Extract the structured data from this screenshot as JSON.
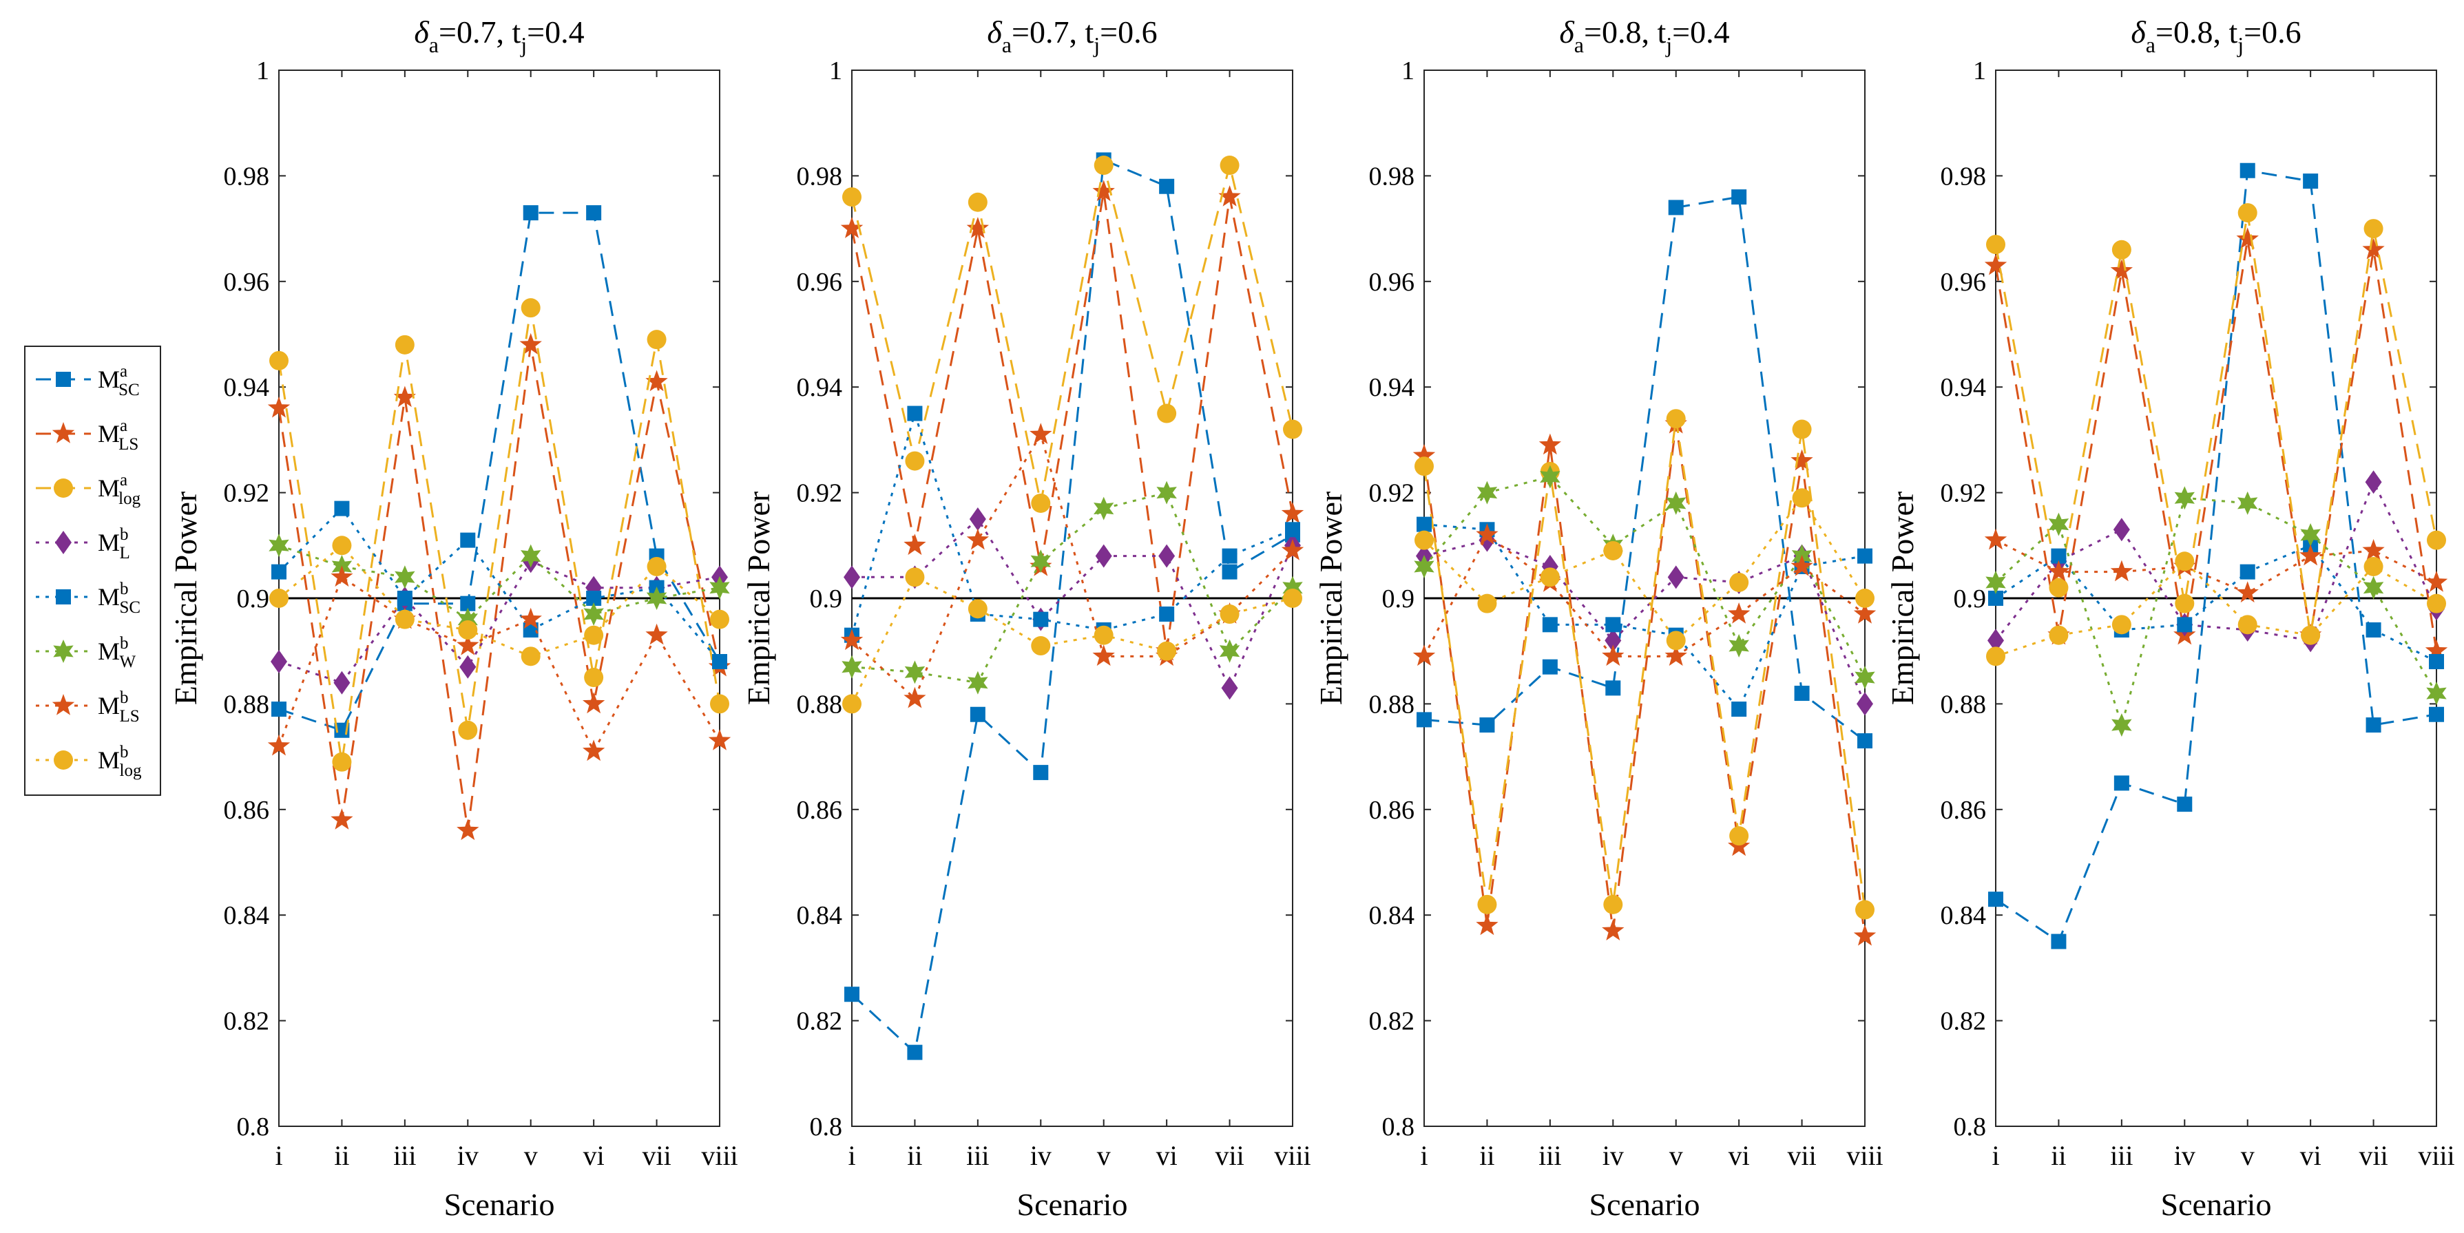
{
  "chart_data": {
    "type": "line",
    "ylabel": "Empirical Power",
    "xlabel": "Scenario",
    "ylim": [
      0.8,
      1.0
    ],
    "yticks": [
      0.8,
      0.82,
      0.84,
      0.86,
      0.88,
      0.9,
      0.92,
      0.94,
      0.96,
      0.98,
      1
    ],
    "ytick_labels": [
      "0.8",
      "0.82",
      "0.84",
      "0.86",
      "0.88",
      "0.9",
      "0.92",
      "0.94",
      "0.96",
      "0.98",
      "1"
    ],
    "categories": [
      "i",
      "ii",
      "iii",
      "iv",
      "v",
      "vi",
      "vii",
      "viii"
    ],
    "reference_line": 0.9,
    "legend": [
      {
        "base": "M",
        "sup": "a",
        "sub": "SC",
        "color": "#0072BD",
        "marker": "square",
        "dash": "dashed"
      },
      {
        "base": "M",
        "sup": "a",
        "sub": "LS",
        "color": "#D95319",
        "marker": "star",
        "dash": "dashed"
      },
      {
        "base": "M",
        "sup": "a",
        "sub": "log",
        "color": "#EDB120",
        "marker": "circle",
        "dash": "dashed"
      },
      {
        "base": "M",
        "sup": "b",
        "sub": "L",
        "color": "#7E2F8E",
        "marker": "diamond",
        "dash": "dotted"
      },
      {
        "base": "M",
        "sup": "b",
        "sub": "SC",
        "color": "#0072BD",
        "marker": "square",
        "dash": "dotted"
      },
      {
        "base": "M",
        "sup": "b",
        "sub": "W",
        "color": "#77AC30",
        "marker": "hexagram",
        "dash": "dotted"
      },
      {
        "base": "M",
        "sup": "b",
        "sub": "LS",
        "color": "#D95319",
        "marker": "star",
        "dash": "dotted"
      },
      {
        "base": "M",
        "sup": "b",
        "sub": "log",
        "color": "#EDB120",
        "marker": "circle",
        "dash": "dotted"
      }
    ],
    "panels": [
      {
        "title_delta": "δ",
        "title_delta_sub": "a",
        "title_mid": "=0.7, t",
        "title_t_sub": "j",
        "title_end": "=0.4",
        "series": [
          {
            "name": "M^a_SC",
            "values": [
              0.879,
              0.875,
              0.899,
              0.899,
              0.973,
              0.973,
              0.908,
              0.888
            ]
          },
          {
            "name": "M^a_LS",
            "values": [
              0.936,
              0.858,
              0.938,
              0.856,
              0.948,
              0.88,
              0.941,
              0.887
            ]
          },
          {
            "name": "M^a_log",
            "values": [
              0.945,
              0.869,
              0.948,
              0.875,
              0.955,
              0.885,
              0.949,
              0.88
            ]
          },
          {
            "name": "M^b_L",
            "values": [
              0.888,
              0.884,
              0.9,
              0.887,
              0.907,
              0.902,
              0.902,
              0.904
            ]
          },
          {
            "name": "M^b_SC",
            "values": [
              0.905,
              0.917,
              0.9,
              0.911,
              0.894,
              0.9,
              0.902,
              0.888
            ]
          },
          {
            "name": "M^b_W",
            "values": [
              0.91,
              0.906,
              0.904,
              0.896,
              0.908,
              0.897,
              0.9,
              0.902
            ]
          },
          {
            "name": "M^b_LS",
            "values": [
              0.872,
              0.904,
              0.896,
              0.891,
              0.896,
              0.871,
              0.893,
              0.873
            ]
          },
          {
            "name": "M^b_log",
            "values": [
              0.9,
              0.91,
              0.896,
              0.894,
              0.889,
              0.893,
              0.906,
              0.896
            ]
          }
        ]
      },
      {
        "title_delta": "δ",
        "title_delta_sub": "a",
        "title_mid": "=0.7, t",
        "title_t_sub": "j",
        "title_end": "=0.6",
        "series": [
          {
            "name": "M^a_SC",
            "values": [
              0.825,
              0.814,
              0.878,
              0.867,
              0.983,
              0.978,
              0.905,
              0.912
            ]
          },
          {
            "name": "M^a_LS",
            "values": [
              0.97,
              0.91,
              0.97,
              0.906,
              0.977,
              0.89,
              0.976,
              0.916
            ]
          },
          {
            "name": "M^a_log",
            "values": [
              0.976,
              0.926,
              0.975,
              0.918,
              0.982,
              0.935,
              0.982,
              0.932
            ]
          },
          {
            "name": "M^b_L",
            "values": [
              0.904,
              0.904,
              0.915,
              0.896,
              0.908,
              0.908,
              0.883,
              0.91
            ]
          },
          {
            "name": "M^b_SC",
            "values": [
              0.893,
              0.935,
              0.897,
              0.896,
              0.894,
              0.897,
              0.908,
              0.913
            ]
          },
          {
            "name": "M^b_W",
            "values": [
              0.887,
              0.886,
              0.884,
              0.907,
              0.917,
              0.92,
              0.89,
              0.902
            ]
          },
          {
            "name": "M^b_LS",
            "values": [
              0.892,
              0.881,
              0.911,
              0.931,
              0.889,
              0.889,
              0.897,
              0.909
            ]
          },
          {
            "name": "M^b_log",
            "values": [
              0.88,
              0.904,
              0.898,
              0.891,
              0.893,
              0.89,
              0.897,
              0.9
            ]
          }
        ]
      },
      {
        "title_delta": "δ",
        "title_delta_sub": "a",
        "title_mid": "=0.8, t",
        "title_t_sub": "j",
        "title_end": "=0.4",
        "series": [
          {
            "name": "M^a_SC",
            "values": [
              0.877,
              0.876,
              0.887,
              0.883,
              0.974,
              0.976,
              0.882,
              0.873
            ]
          },
          {
            "name": "M^a_LS",
            "values": [
              0.927,
              0.838,
              0.929,
              0.837,
              0.933,
              0.853,
              0.926,
              0.836
            ]
          },
          {
            "name": "M^a_log",
            "values": [
              0.925,
              0.842,
              0.924,
              0.842,
              0.934,
              0.855,
              0.932,
              0.841
            ]
          },
          {
            "name": "M^b_L",
            "values": [
              0.908,
              0.911,
              0.906,
              0.892,
              0.904,
              0.903,
              0.908,
              0.88
            ]
          },
          {
            "name": "M^b_SC",
            "values": [
              0.914,
              0.913,
              0.895,
              0.895,
              0.893,
              0.879,
              0.906,
              0.908
            ]
          },
          {
            "name": "M^b_W",
            "values": [
              0.906,
              0.92,
              0.923,
              0.91,
              0.918,
              0.891,
              0.908,
              0.885
            ]
          },
          {
            "name": "M^b_LS",
            "values": [
              0.889,
              0.912,
              0.903,
              0.889,
              0.889,
              0.897,
              0.906,
              0.897
            ]
          },
          {
            "name": "M^b_log",
            "values": [
              0.911,
              0.899,
              0.904,
              0.909,
              0.892,
              0.903,
              0.919,
              0.9
            ]
          }
        ]
      },
      {
        "title_delta": "δ",
        "title_delta_sub": "a",
        "title_mid": "=0.8, t",
        "title_t_sub": "j",
        "title_end": "=0.6",
        "series": [
          {
            "name": "M^a_SC",
            "values": [
              0.843,
              0.835,
              0.865,
              0.861,
              0.981,
              0.979,
              0.876,
              0.878
            ]
          },
          {
            "name": "M^a_LS",
            "values": [
              0.963,
              0.893,
              0.962,
              0.893,
              0.968,
              0.893,
              0.966,
              0.89
            ]
          },
          {
            "name": "M^a_log",
            "values": [
              0.967,
              0.902,
              0.966,
              0.899,
              0.973,
              0.893,
              0.97,
              0.911
            ]
          },
          {
            "name": "M^b_L",
            "values": [
              0.892,
              0.907,
              0.913,
              0.895,
              0.894,
              0.892,
              0.922,
              0.898
            ]
          },
          {
            "name": "M^b_SC",
            "values": [
              0.9,
              0.908,
              0.894,
              0.895,
              0.905,
              0.91,
              0.894,
              0.888
            ]
          },
          {
            "name": "M^b_W",
            "values": [
              0.903,
              0.914,
              0.876,
              0.919,
              0.918,
              0.912,
              0.902,
              0.882
            ]
          },
          {
            "name": "M^b_LS",
            "values": [
              0.911,
              0.905,
              0.905,
              0.906,
              0.901,
              0.908,
              0.909,
              0.903
            ]
          },
          {
            "name": "M^b_log",
            "values": [
              0.889,
              0.893,
              0.895,
              0.907,
              0.895,
              0.893,
              0.906,
              0.899
            ]
          }
        ]
      }
    ]
  }
}
